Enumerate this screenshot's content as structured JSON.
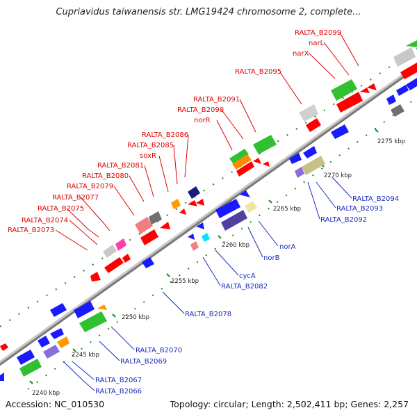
{
  "title": "Cupriavidus taiwanensis str. LMG19424 chromosome 2, complete...",
  "footer": {
    "accession": "Accession: NC_010530",
    "info": "Topology: circular; Length: 2,502,411 bp; Genes: 2,257"
  },
  "ticks": [
    "2240 kbp",
    "2245 kbp",
    "2250 kbp",
    "2255 kbp",
    "2260 kbp",
    "2265 kbp",
    "2270 kbp",
    "2275 kbp"
  ],
  "labels_top": [
    "RALTA_B2073",
    "RALTA_B2074",
    "RALTA_B2075",
    "RALTA_B2077",
    "RALTA_B2079",
    "RALTA_B2080",
    "RALTA_B2081",
    "soxR",
    "RALTA_B2085",
    "RALTA_B2086",
    "norR",
    "RALTA_B2090",
    "RALTA_B2091",
    "RALTA_B2095",
    "narX",
    "narL",
    "RALTA_B2099"
  ],
  "labels_bottom": [
    "RALTA_B2066",
    "RALTA_B2067",
    "RALTA_B2069",
    "RALTA_B2070",
    "RALTA_B2078",
    "RALTA_B2082",
    "cycA",
    "norB",
    "norA",
    "RALTA_B2092",
    "RALTA_B2093",
    "RALTA_B2094"
  ],
  "colors": {
    "forward": "#ff0000",
    "reverse": "#1a1aff",
    "label_top": "#e00000",
    "label_bottom": "#1a2bbf",
    "track": "#a0a0a0",
    "tick": "#1a8a1a"
  }
}
